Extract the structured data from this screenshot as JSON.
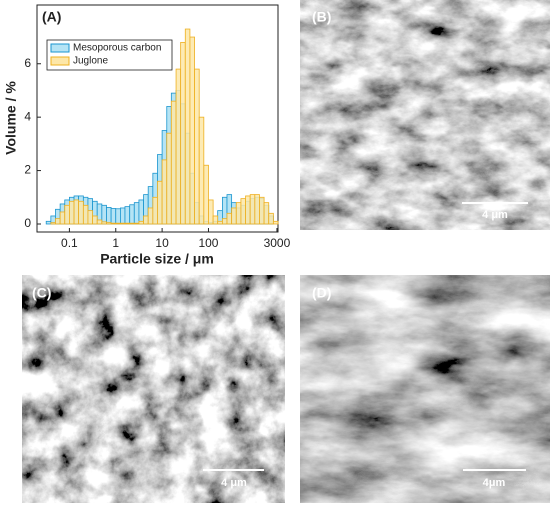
{
  "chart_data": {
    "type": "histogram",
    "title": "(A)",
    "xlabel": "Particle size / μm",
    "ylabel": "Volume / %",
    "xscale": "log",
    "xlim": [
      0.02,
      3162
    ],
    "ylim": [
      -0.3,
      8.2
    ],
    "xticks": [
      0.1,
      1,
      10,
      100,
      3000
    ],
    "yticks": [
      0,
      2,
      4,
      6
    ],
    "legend": "upper left",
    "bins": [
      0.02,
      0.0251,
      0.0316,
      0.0398,
      0.0501,
      0.0631,
      0.0794,
      0.1,
      0.126,
      0.158,
      0.2,
      0.251,
      0.316,
      0.398,
      0.501,
      0.631,
      0.794,
      1,
      1.26,
      1.58,
      2,
      2.51,
      3.16,
      3.98,
      5.01,
      6.31,
      7.94,
      10,
      12.6,
      15.8,
      20,
      25.1,
      31.6,
      39.8,
      50.1,
      63.1,
      79.4,
      100,
      126,
      158,
      200,
      251,
      316,
      398,
      501,
      631,
      794,
      1000,
      1259,
      1585,
      1995,
      2512,
      3162
    ],
    "series": [
      {
        "name": "Mesoporous carbon",
        "color": "#1a95cf",
        "fill": "#b5e4f5",
        "values": [
          0,
          0,
          0.1,
          0.3,
          0.55,
          0.75,
          0.9,
          1.0,
          1.05,
          1.05,
          1.0,
          0.95,
          0.85,
          0.75,
          0.7,
          0.62,
          0.58,
          0.57,
          0.6,
          0.65,
          0.72,
          0.8,
          0.9,
          1.1,
          1.4,
          1.9,
          2.6,
          3.5,
          4.4,
          4.9,
          5.0,
          4.5,
          3.4,
          1.9,
          0.8,
          0.3,
          0.1,
          0.05,
          0.1,
          0.5,
          1.0,
          1.1,
          0.8,
          0.6,
          0.7,
          0.85,
          0.95,
          1.0,
          0.95,
          0.7,
          0.3,
          0
        ]
      },
      {
        "name": "Juglone",
        "color": "#eeb021",
        "fill": "#fde7a8",
        "values": [
          0,
          0,
          0,
          0.05,
          0.2,
          0.45,
          0.7,
          0.85,
          0.9,
          0.85,
          0.7,
          0.5,
          0.3,
          0.15,
          0.08,
          0.05,
          0.03,
          0.03,
          0.03,
          0.03,
          0.03,
          0.03,
          0.1,
          0.3,
          0.6,
          1.0,
          1.6,
          2.4,
          3.4,
          4.6,
          5.8,
          6.8,
          7.3,
          7.0,
          5.8,
          4.0,
          2.2,
          0.9,
          0.3,
          0.1,
          0.2,
          0.4,
          0.6,
          0.8,
          0.95,
          1.05,
          1.1,
          1.1,
          1.0,
          0.8,
          0.4,
          0.1
        ]
      }
    ]
  },
  "panels": [
    {
      "label": "(B)",
      "scale_bar": "4 μm"
    },
    {
      "label": "(C)",
      "scale_bar": "4 μm"
    },
    {
      "label": "(D)",
      "scale_bar": "4μm"
    }
  ]
}
